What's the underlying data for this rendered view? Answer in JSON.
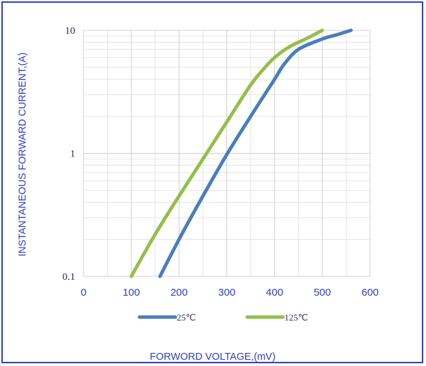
{
  "chart_data": {
    "type": "line",
    "xlabel": "FORWORD VOLTAGE,(mV)",
    "ylabel": "INSTANTANEOUS FORWARD CURRENT,(A)",
    "xlim": [
      0,
      600
    ],
    "ylim": [
      0.1,
      10
    ],
    "yscale": "log",
    "x_ticks": [
      "0",
      "100",
      "200",
      "300",
      "400",
      "500",
      "600"
    ],
    "y_ticks": [
      "0.1",
      "1",
      "10"
    ],
    "grid": true,
    "legend_position": "bottom",
    "series": [
      {
        "name": "25℃",
        "color": "#4a7ebb",
        "x": [
          160,
          200,
          250,
          300,
          350,
          400,
          420,
          450,
          500,
          530,
          560
        ],
        "y": [
          0.1,
          0.2,
          0.45,
          0.98,
          2.0,
          4.0,
          5.3,
          7.0,
          8.5,
          9.2,
          10
        ]
      },
      {
        "name": "125℃",
        "color": "#94bf4a",
        "x": [
          100,
          150,
          200,
          250,
          300,
          350,
          380,
          400,
          430,
          470,
          500
        ],
        "y": [
          0.1,
          0.22,
          0.45,
          0.9,
          1.8,
          3.6,
          5.0,
          6.0,
          7.3,
          8.7,
          10
        ]
      }
    ]
  }
}
